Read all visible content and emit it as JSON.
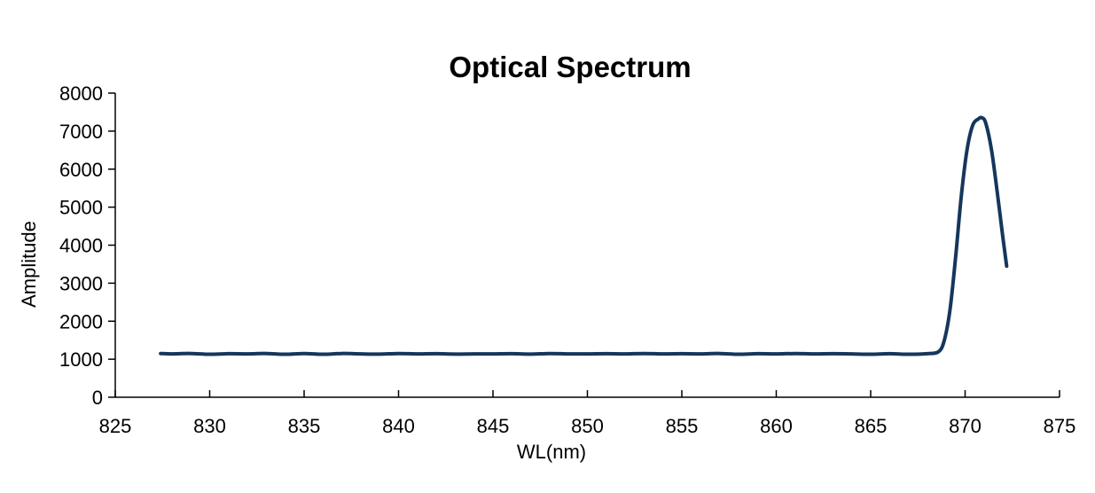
{
  "chart_data": {
    "type": "line",
    "title": "Optical Spectrum",
    "xlabel": "WL(nm)",
    "ylabel": "Amplitude",
    "xlim": [
      825,
      875
    ],
    "ylim": [
      0,
      8000
    ],
    "xticks": [
      825,
      830,
      835,
      840,
      845,
      850,
      855,
      860,
      865,
      870,
      875
    ],
    "yticks": [
      0,
      1000,
      2000,
      3000,
      4000,
      5000,
      6000,
      7000,
      8000
    ],
    "grid": false,
    "legend": "none",
    "series": [
      {
        "color": "#16365c",
        "x": [
          827.4,
          828.0,
          829.0,
          830.0,
          831.0,
          832.0,
          833.0,
          834.0,
          835.0,
          836.0,
          837.0,
          838.0,
          839.0,
          840.0,
          841.0,
          842.0,
          843.0,
          844.0,
          845.0,
          846.0,
          847.0,
          848.0,
          849.0,
          850.0,
          851.0,
          852.0,
          853.0,
          854.0,
          855.0,
          856.0,
          857.0,
          858.0,
          859.0,
          860.0,
          861.0,
          862.0,
          863.0,
          864.0,
          865.0,
          866.0,
          867.0,
          868.0,
          868.6,
          868.9,
          869.2,
          869.5,
          869.8,
          870.1,
          870.4,
          870.7,
          870.9,
          871.1,
          871.4,
          871.7,
          872.0,
          872.2
        ],
        "y": [
          1150,
          1140,
          1150,
          1130,
          1145,
          1140,
          1150,
          1130,
          1150,
          1130,
          1150,
          1140,
          1135,
          1150,
          1140,
          1145,
          1135,
          1140,
          1140,
          1145,
          1135,
          1150,
          1140,
          1140,
          1145,
          1140,
          1150,
          1140,
          1145,
          1140,
          1150,
          1130,
          1145,
          1140,
          1150,
          1140,
          1145,
          1140,
          1130,
          1145,
          1130,
          1145,
          1200,
          1500,
          2300,
          3700,
          5300,
          6500,
          7150,
          7320,
          7350,
          7200,
          6500,
          5400,
          4200,
          3450
        ]
      }
    ]
  }
}
